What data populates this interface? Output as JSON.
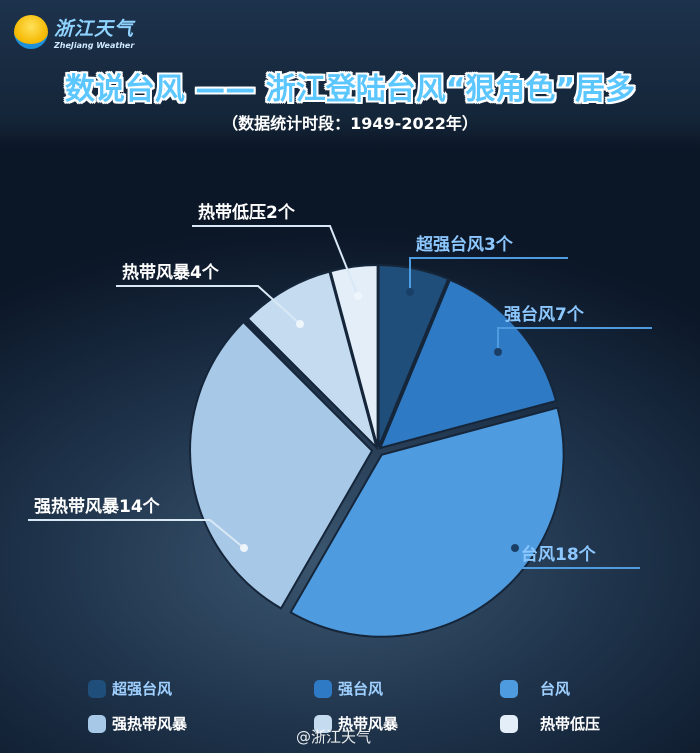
{
  "brand": {
    "name_cn": "浙江天气",
    "name_en": "ZheJiang Weather"
  },
  "header": {
    "title": "数说台风 —— 浙江登陆台风“狠角色”居多",
    "subtitle": "（数据统计时段：1949-2022年）"
  },
  "chart_data": {
    "type": "pie",
    "title": "数说台风 —— 浙江登陆台风“狠角色”居多",
    "subtitle": "（数据统计时段：1949-2022年）",
    "unit": "个",
    "categories": [
      "超强台风",
      "强台风",
      "台风",
      "强热带风暴",
      "热带风暴",
      "热带低压"
    ],
    "values": [
      3,
      7,
      18,
      14,
      4,
      2
    ],
    "labels": [
      "超强台风3个",
      "强台风7个",
      "台风18个",
      "强热带风暴14个",
      "热带风暴4个",
      "热带低压2个"
    ],
    "colors": [
      "#1f4e7a",
      "#2f7ac4",
      "#4f9be0",
      "#a8c8e8",
      "#c5dcf0",
      "#e4eef8"
    ],
    "start_angle": "12 o'clock",
    "direction": "clockwise",
    "legend_position": "bottom"
  },
  "watermark": "@浙江天气"
}
